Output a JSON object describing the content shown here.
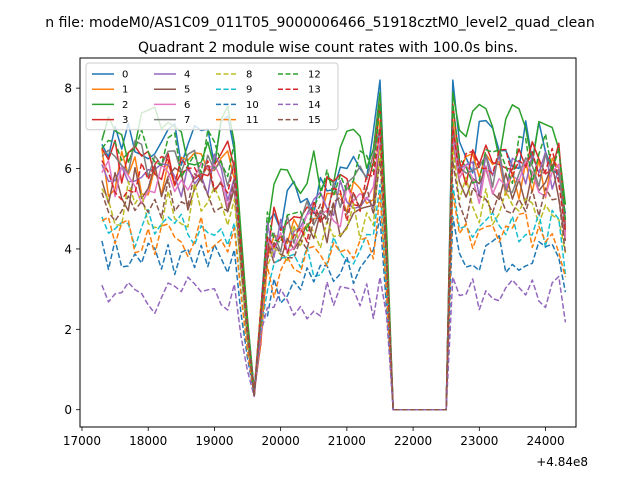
{
  "chart_data": {
    "type": "line",
    "suptitle": "n file: modeM0/AS1C09_011T05_9000006466_51918cztM0_level2_quad_clean",
    "title": "Quadrant 2 module wise count rates with 100.0s bins.",
    "xlabel": "",
    "ylabel": "",
    "x_offset_label": "+4.84e8",
    "xlim": [
      16970,
      24460
    ],
    "ylim": [
      -0.43,
      8.75
    ],
    "xticks": [
      17000,
      18000,
      19000,
      20000,
      21000,
      22000,
      23000,
      24000
    ],
    "xtick_labels": [
      "17000",
      "18000",
      "19000",
      "20000",
      "21000",
      "22000",
      "23000",
      "24000"
    ],
    "yticks": [
      0,
      2,
      4,
      6,
      8
    ],
    "ytick_labels": [
      "0",
      "2",
      "4",
      "6",
      "8"
    ],
    "x_segments": [
      [
        17300,
        19600
      ],
      [
        19600,
        21600
      ],
      [
        21600,
        22500
      ],
      [
        22500,
        24300
      ]
    ],
    "series": [
      {
        "name": "0",
        "color": "#1f77b4",
        "dash": "solid",
        "seg_means": [
          6.7,
          4.7,
          0,
          6.5
        ],
        "amp": 0.35,
        "start": 6.6,
        "peak": 8.2
      },
      {
        "name": "1",
        "color": "#ff7f0e",
        "dash": "solid",
        "seg_means": [
          5.9,
          4.0,
          0,
          5.8
        ],
        "amp": 0.3,
        "start": 6.5,
        "peak": 7.2
      },
      {
        "name": "2",
        "color": "#2ca02c",
        "dash": "solid",
        "seg_means": [
          6.8,
          5.0,
          0,
          6.8
        ],
        "amp": 0.4,
        "start": 6.7,
        "peak": 7.9
      },
      {
        "name": "3",
        "color": "#d62728",
        "dash": "solid",
        "seg_means": [
          6.1,
          4.4,
          0,
          6.1
        ],
        "amp": 0.3,
        "start": 6.5,
        "peak": 7.6
      },
      {
        "name": "4",
        "color": "#9467bd",
        "dash": "solid",
        "seg_means": [
          5.8,
          4.2,
          0,
          5.9
        ],
        "amp": 0.3,
        "start": 6.1,
        "peak": 7.0
      },
      {
        "name": "5",
        "color": "#8c564b",
        "dash": "solid",
        "seg_means": [
          5.5,
          3.9,
          0,
          5.6
        ],
        "amp": 0.3,
        "start": 5.7,
        "peak": 6.7
      },
      {
        "name": "6",
        "color": "#e377c2",
        "dash": "solid",
        "seg_means": [
          5.6,
          4.1,
          0,
          5.7
        ],
        "amp": 0.3,
        "start": 5.9,
        "peak": 6.8
      },
      {
        "name": "7",
        "color": "#7f7f7f",
        "dash": "solid",
        "seg_means": [
          6.1,
          4.3,
          0,
          6.0
        ],
        "amp": 0.3,
        "start": 6.3,
        "peak": 7.0
      },
      {
        "name": "8",
        "color": "#bcbd22",
        "dash": "dashed",
        "seg_means": [
          5.1,
          3.8,
          0,
          5.2
        ],
        "amp": 0.3,
        "start": 5.5,
        "peak": 6.5
      },
      {
        "name": "9",
        "color": "#17becf",
        "dash": "dashed",
        "seg_means": [
          4.5,
          3.3,
          0,
          4.5
        ],
        "amp": 0.25,
        "start": 4.8,
        "peak": 5.6
      },
      {
        "name": "10",
        "color": "#1f77b4",
        "dash": "dashed",
        "seg_means": [
          3.8,
          2.8,
          0,
          3.9
        ],
        "amp": 0.25,
        "start": 4.2,
        "peak": 4.8
      },
      {
        "name": "11",
        "color": "#ff7f0e",
        "dash": "dashed",
        "seg_means": [
          4.3,
          3.2,
          0,
          4.4
        ],
        "amp": 0.25,
        "start": 4.7,
        "peak": 5.4
      },
      {
        "name": "12",
        "color": "#2ca02c",
        "dash": "dashed",
        "seg_means": [
          6.3,
          4.6,
          0,
          6.3
        ],
        "amp": 0.35,
        "start": 6.5,
        "peak": 7.6
      },
      {
        "name": "13",
        "color": "#d62728",
        "dash": "dashed",
        "seg_means": [
          5.8,
          4.2,
          0,
          5.9
        ],
        "amp": 0.3,
        "start": 6.2,
        "peak": 7.0
      },
      {
        "name": "14",
        "color": "#9467bd",
        "dash": "dashed",
        "seg_means": [
          2.8,
          2.6,
          0,
          2.9
        ],
        "amp": 0.25,
        "start": 3.1,
        "peak": 3.3
      },
      {
        "name": "15",
        "color": "#8c564b",
        "dash": "dashed",
        "seg_means": [
          5.3,
          4.0,
          0,
          5.2
        ],
        "amp": 0.3,
        "start": 5.4,
        "peak": 6.2
      }
    ],
    "legend_position": "upper-left",
    "legend_columns": 4,
    "grid": false
  }
}
